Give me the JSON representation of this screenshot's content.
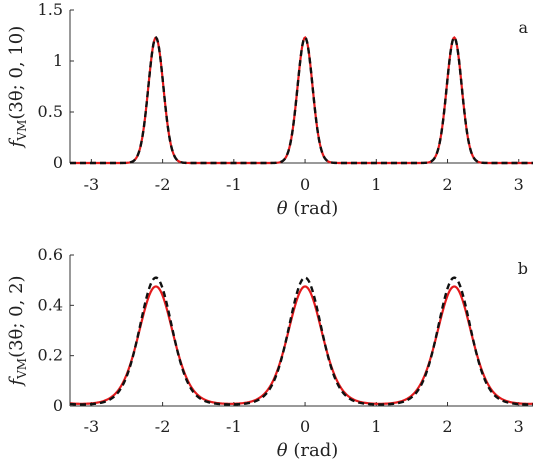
{
  "chart_data": [
    {
      "type": "line",
      "panel_label": "a",
      "ylabel_text": "f",
      "ylabel_sub": "VM",
      "ylabel_args": "(3θ; 0, 10)",
      "xlabel_var": "θ",
      "xlabel_unit": " (rad)",
      "xlim": [
        -3.3,
        3.2
      ],
      "ylim": [
        0,
        1.5
      ],
      "xticks": [
        -3,
        -2,
        -1,
        0,
        1,
        2,
        3
      ],
      "xtick_labels": [
        "-3",
        "-2",
        "-1",
        "0",
        "1",
        "2",
        "3"
      ],
      "yticks": [
        0,
        0.5,
        1,
        1.5
      ],
      "ytick_labels": [
        "0",
        "0.5",
        "1",
        "1.5"
      ],
      "grid": false,
      "series": [
        {
          "style": "solid",
          "color": "#e41a1c",
          "kappa": 10,
          "peak_scale": 1.0,
          "peaks": [
            -2.094,
            0,
            2.094
          ],
          "peak_value": 1.23
        },
        {
          "style": "dashed",
          "color": "#111111",
          "kappa": 10,
          "peak_scale": 1.0,
          "peaks": [
            -2.094,
            0,
            2.094
          ],
          "peak_value": 1.23
        }
      ]
    },
    {
      "type": "line",
      "panel_label": "b",
      "ylabel_text": "f",
      "ylabel_sub": "VM",
      "ylabel_args": "(3θ; 0, 2)",
      "xlabel_var": "θ",
      "xlabel_unit": " (rad)",
      "xlim": [
        -3.3,
        3.2
      ],
      "ylim": [
        0,
        0.6
      ],
      "xticks": [
        -3,
        -2,
        -1,
        0,
        1,
        2,
        3
      ],
      "xtick_labels": [
        "-3",
        "-2",
        "-1",
        "0",
        "1",
        "2",
        "3"
      ],
      "yticks": [
        0,
        0.2,
        0.4,
        0.6
      ],
      "ytick_labels": [
        "0",
        "0.2",
        "0.4",
        "0.6"
      ],
      "grid": false,
      "series": [
        {
          "style": "solid",
          "color": "#e41a1c",
          "kappa": 2,
          "peak_scale": 1.0,
          "peaks": [
            -2.094,
            0,
            2.094
          ],
          "peak_value": 0.475
        },
        {
          "style": "dashed",
          "color": "#111111",
          "kappa": 2.2,
          "peak_scale": 1.0,
          "peaks": [
            -2.094,
            0,
            2.094
          ],
          "peak_value": 0.51
        }
      ]
    }
  ]
}
